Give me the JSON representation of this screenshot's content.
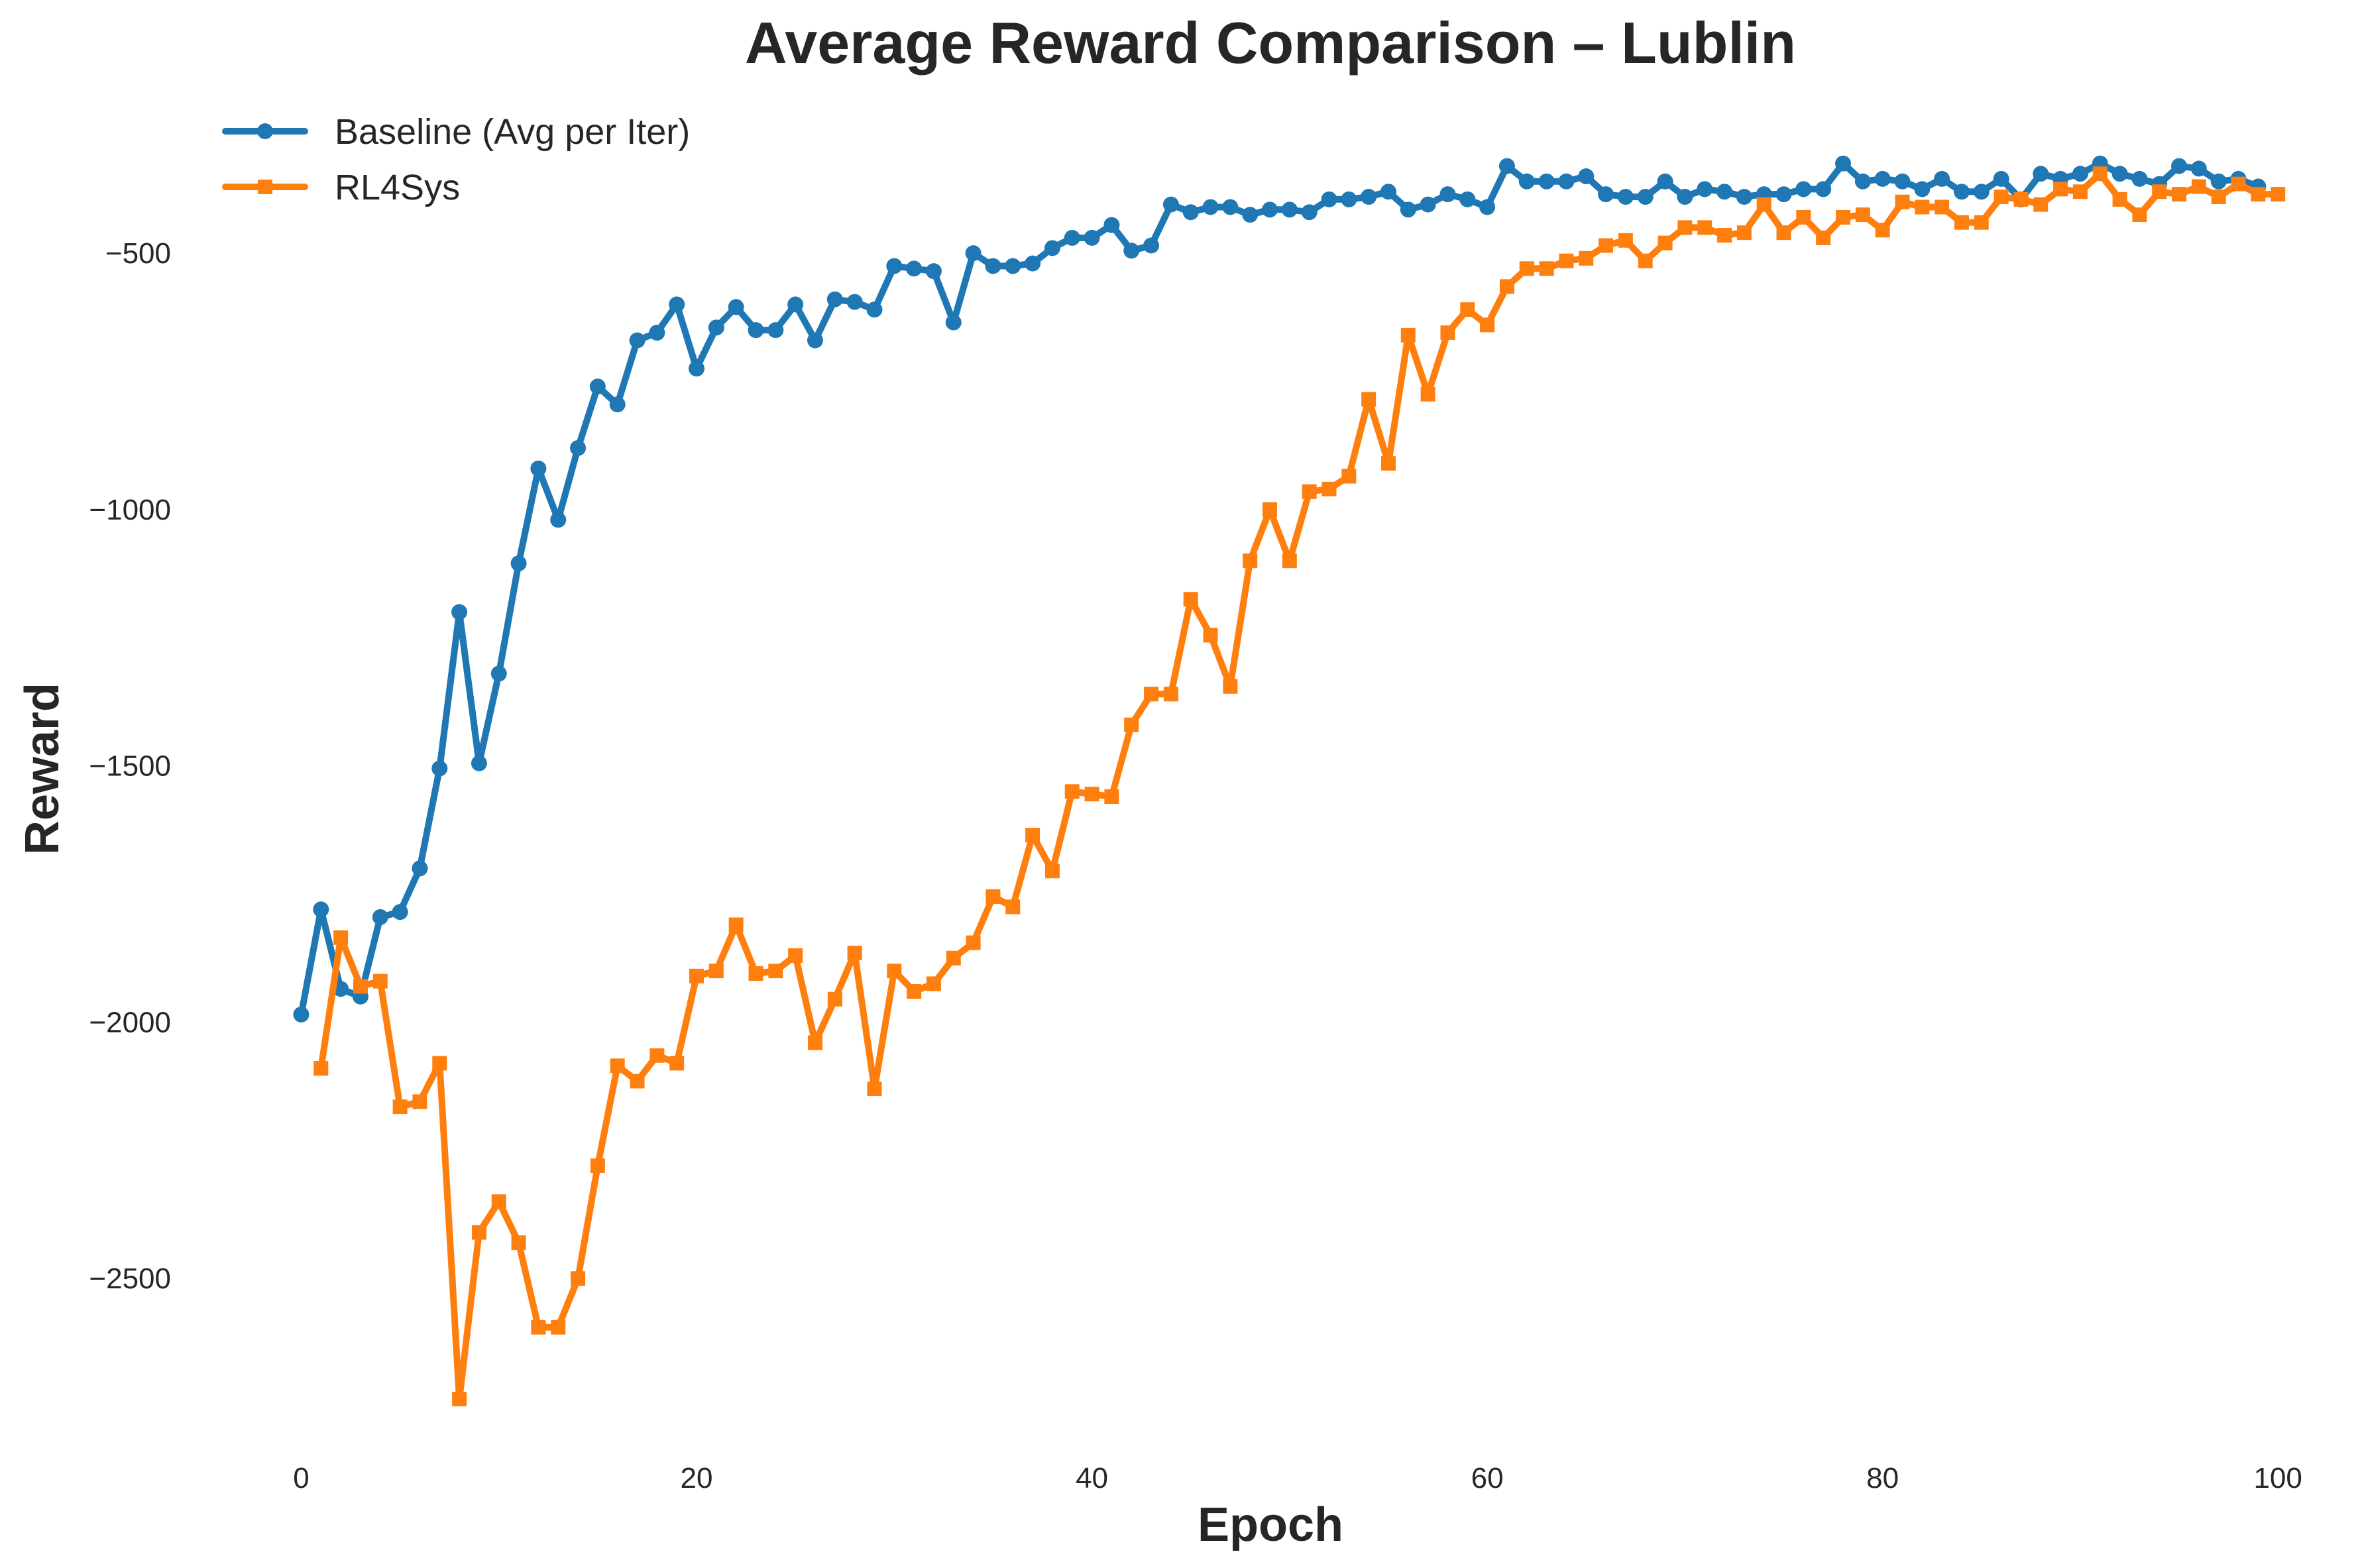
{
  "chart_data": {
    "type": "line",
    "title": "Average Reward Comparison – Lublin",
    "xlabel": "Epoch",
    "ylabel": "Reward",
    "xlim": [
      -3,
      101
    ],
    "ylim": [
      -2850,
      -200
    ],
    "xticks": [
      0,
      20,
      40,
      60,
      80,
      100
    ],
    "xtick_labels": [
      "0",
      "20",
      "40",
      "60",
      "80",
      "100"
    ],
    "yticks": [
      -500,
      -1000,
      -1500,
      -2000,
      -2500
    ],
    "ytick_labels": [
      "−500",
      "−1000",
      "−1500",
      "−2000",
      "−2500"
    ],
    "grid": false,
    "legend_position": "top-left",
    "series": [
      {
        "name": "Baseline (Avg per Iter)",
        "color": "#1f77b4",
        "marker": "circle",
        "x_start": 0,
        "values": [
          -1985,
          -1780,
          -1935,
          -1950,
          -1795,
          -1785,
          -1700,
          -1505,
          -1200,
          -1495,
          -1320,
          -1105,
          -920,
          -1020,
          -880,
          -760,
          -795,
          -670,
          -655,
          -600,
          -725,
          -645,
          -605,
          -650,
          -650,
          -600,
          -670,
          -590,
          -595,
          -610,
          -525,
          -530,
          -535,
          -635,
          -500,
          -525,
          -525,
          -520,
          -490,
          -470,
          -470,
          -445,
          -495,
          -485,
          -405,
          -420,
          -410,
          -410,
          -425,
          -415,
          -415,
          -420,
          -395,
          -395,
          -390,
          -380,
          -415,
          -405,
          -385,
          -395,
          -410,
          -330,
          -360,
          -360,
          -360,
          -350,
          -385,
          -390,
          -390,
          -360,
          -390,
          -375,
          -380,
          -390,
          -385,
          -385,
          -375,
          -375,
          -325,
          -360,
          -355,
          -360,
          -375,
          -355,
          -380,
          -380,
          -355,
          -395,
          -345,
          -355,
          -345,
          -325,
          -345,
          -355,
          -365,
          -330,
          -335,
          -360,
          -355,
          -370
        ]
      },
      {
        "name": "RL4Sys",
        "color": "#ff7f0e",
        "marker": "square",
        "x_start": 1,
        "values": [
          -2090,
          -1835,
          -1930,
          -1920,
          -2165,
          -2155,
          -2080,
          -2735,
          -2410,
          -2350,
          -2430,
          -2595,
          -2595,
          -2500,
          -2280,
          -2085,
          -2115,
          -2065,
          -2080,
          -1910,
          -1900,
          -1810,
          -1905,
          -1900,
          -1870,
          -2040,
          -1955,
          -1865,
          -2130,
          -1900,
          -1940,
          -1925,
          -1875,
          -1845,
          -1755,
          -1775,
          -1635,
          -1705,
          -1550,
          -1555,
          -1560,
          -1420,
          -1360,
          -1360,
          -1175,
          -1245,
          -1345,
          -1100,
          -1000,
          -1100,
          -965,
          -960,
          -935,
          -785,
          -910,
          -660,
          -775,
          -655,
          -610,
          -640,
          -565,
          -530,
          -530,
          -515,
          -510,
          -485,
          -475,
          -515,
          -480,
          -450,
          -450,
          -465,
          -460,
          -405,
          -460,
          -430,
          -470,
          -430,
          -425,
          -455,
          -400,
          -410,
          -410,
          -440,
          -440,
          -390,
          -395,
          -405,
          -375,
          -380,
          -345,
          -395,
          -425,
          -380,
          -385,
          -370,
          -390,
          -365,
          -385,
          -385
        ]
      }
    ]
  }
}
